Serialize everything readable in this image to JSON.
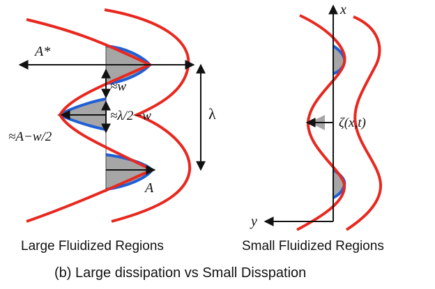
{
  "colors": {
    "red_curve": "#e8281f",
    "blue_region": "#1f5fd6",
    "gray_fill": "#a6a6a6",
    "ink": "#111111"
  },
  "left_panel": {
    "label": "Large Fluidized Regions",
    "annotations": {
      "a_star": "A*",
      "w": "≈w",
      "half_lambda_minus_w": "≈λ/2−w",
      "lambda": "λ",
      "a_minus_half_w": "≈A−w/2",
      "a": "A"
    }
  },
  "right_panel": {
    "label": "Small Fluidized Regions",
    "axis_x": "x",
    "axis_y": "y",
    "zeta": "ζ(x,t)"
  },
  "caption": "(b) Large dissipation vs Small Disspation"
}
